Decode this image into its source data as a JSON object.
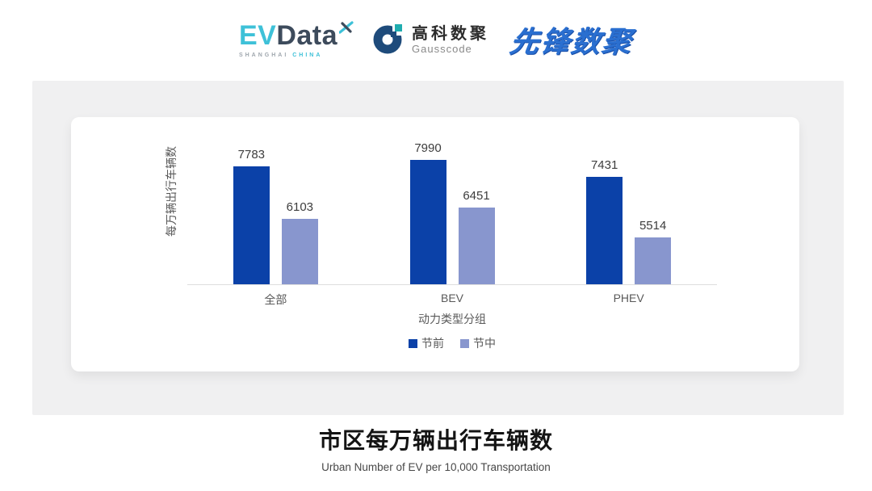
{
  "header": {
    "evdata": {
      "ev": "EV",
      "data": "Data",
      "x_mark_icon": "x-spark-icon",
      "tagline_shanghai": "SHANGHAI",
      "tagline_china": "CHINA",
      "color_cyan": "#3EC1D8",
      "color_dark": "#3D4B5C"
    },
    "gausscode": {
      "name_cn": "高科数聚",
      "name_en": "Gausscode",
      "icon": "gausscode-g-icon",
      "color_navy": "#1E4B7B",
      "color_teal": "#1FADB0"
    },
    "pioneer": {
      "name": "先锋数聚",
      "color": "#2A6FD0"
    }
  },
  "chart_data": {
    "type": "bar",
    "categories": [
      "全部",
      "BEV",
      "PHEV"
    ],
    "series": [
      {
        "name": "节前",
        "color": "#0B41A8",
        "values": [
          7783,
          7990,
          7431
        ]
      },
      {
        "name": "节中",
        "color": "#8896CE",
        "values": [
          6103,
          6451,
          5514
        ]
      }
    ],
    "title": "市区每万辆出行车辆数",
    "subtitle": "Urban Number of EV per 10,000 Transportation",
    "xlabel": "动力类型分组",
    "ylabel": "每万辆出行车辆数",
    "ylim": [
      4000,
      8400
    ],
    "grid": false,
    "legend_position": "bottom",
    "data_labels": true,
    "axis_color": "#DEDEDE",
    "label_color": "#595959",
    "value_label_color": "#3D3D3D"
  },
  "footer": {
    "title": "市区每万辆出行车辆数",
    "subtitle": "Urban Number of EV per 10,000 Transportation"
  }
}
